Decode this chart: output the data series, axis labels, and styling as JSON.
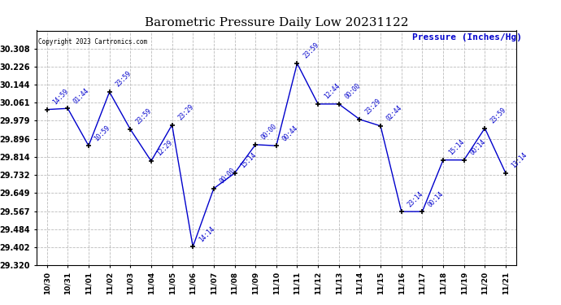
{
  "title": "Barometric Pressure Daily Low 20231122",
  "ylabel": "Pressure (Inches/Hg)",
  "copyright_text": "Copyright 2023 Cartronics.com",
  "line_color": "#0000CC",
  "text_color": "#0000CC",
  "background_color": "#ffffff",
  "grid_color": "#bbbbbb",
  "ylim_min": 29.32,
  "ylim_max": 30.39,
  "yticks": [
    29.32,
    29.402,
    29.484,
    29.567,
    29.649,
    29.732,
    29.814,
    29.896,
    29.979,
    30.061,
    30.144,
    30.226,
    30.308
  ],
  "dates": [
    "10/30",
    "10/31",
    "11/01",
    "11/02",
    "11/03",
    "11/04",
    "11/05",
    "11/06",
    "11/07",
    "11/08",
    "11/09",
    "11/10",
    "11/11",
    "11/12",
    "11/13",
    "11/14",
    "11/15",
    "11/16",
    "11/17",
    "11/18",
    "11/19",
    "11/20",
    "11/21"
  ],
  "pressures": [
    30.03,
    30.035,
    29.865,
    30.11,
    29.94,
    29.795,
    29.96,
    29.405,
    29.67,
    29.74,
    29.87,
    29.865,
    30.24,
    30.055,
    30.055,
    29.985,
    29.955,
    29.565,
    29.565,
    29.8,
    29.8,
    29.945,
    29.74
  ],
  "times": [
    "14:59",
    "01:44",
    "10:59",
    "23:59",
    "23:59",
    "12:29",
    "23:29",
    "14:14",
    "00:00",
    "15:14",
    "00:00",
    "00:44",
    "23:59",
    "12:44",
    "00:00",
    "23:29",
    "02:44",
    "23:14",
    "00:14",
    "15:14",
    "00:14",
    "23:59",
    "13:14"
  ]
}
